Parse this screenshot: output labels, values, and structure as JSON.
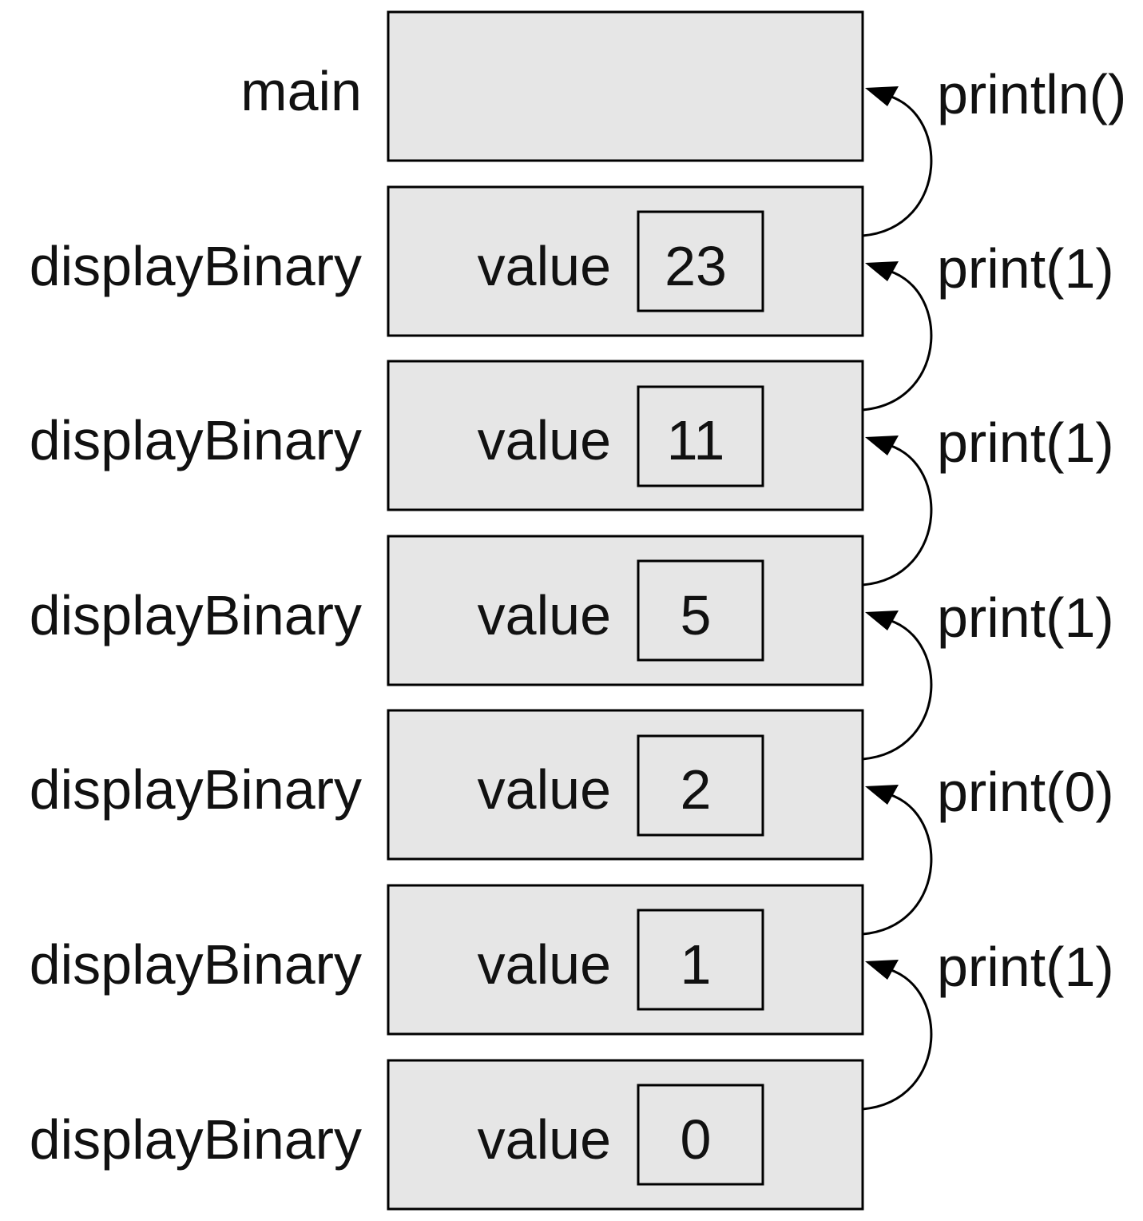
{
  "frames": [
    {
      "name": "main"
    },
    {
      "name": "displayBinary",
      "var_label": "value",
      "value": "23"
    },
    {
      "name": "displayBinary",
      "var_label": "value",
      "value": "11"
    },
    {
      "name": "displayBinary",
      "var_label": "value",
      "value": "5"
    },
    {
      "name": "displayBinary",
      "var_label": "value",
      "value": "2"
    },
    {
      "name": "displayBinary",
      "var_label": "value",
      "value": "1"
    },
    {
      "name": "displayBinary",
      "var_label": "value",
      "value": "0"
    }
  ],
  "calls": [
    "println()",
    "print(1)",
    "print(1)",
    "print(1)",
    "print(0)",
    "print(1)"
  ]
}
